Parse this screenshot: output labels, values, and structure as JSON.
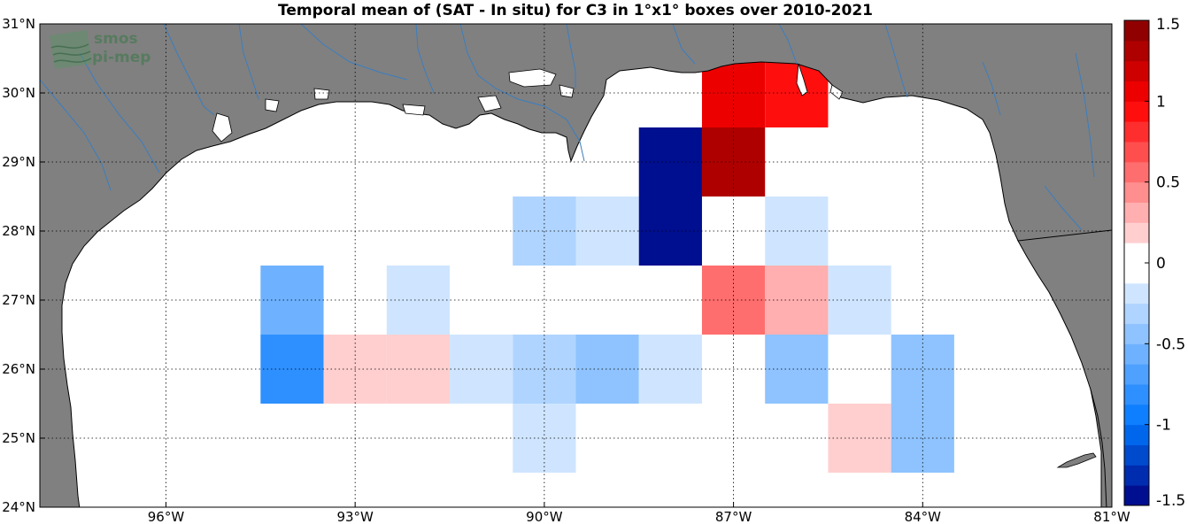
{
  "title": "Temporal mean of (SAT - In situ) for C3 in 1°x1° boxes over 2010-2021",
  "logo": {
    "line1": "smos",
    "line2": "pi-mep"
  },
  "colors": {
    "land": "#808080",
    "ocean": "#ffffff",
    "river": "#3a7ec0",
    "coast": "#000000",
    "grid": "#000000"
  },
  "chart_data": {
    "type": "heatmap",
    "xlim": [
      -98,
      -81
    ],
    "ylim": [
      24,
      31
    ],
    "x_ticks": [
      {
        "value": -96,
        "label": "96°W"
      },
      {
        "value": -93,
        "label": "93°W"
      },
      {
        "value": -90,
        "label": "90°W"
      },
      {
        "value": -87,
        "label": "87°W"
      },
      {
        "value": -84,
        "label": "84°W"
      },
      {
        "value": -81,
        "label": "81°W"
      }
    ],
    "y_ticks": [
      {
        "value": 24,
        "label": "24°N"
      },
      {
        "value": 25,
        "label": "25°N"
      },
      {
        "value": 26,
        "label": "26°N"
      },
      {
        "value": 27,
        "label": "27°N"
      },
      {
        "value": 28,
        "label": "28°N"
      },
      {
        "value": 29,
        "label": "29°N"
      },
      {
        "value": 30,
        "label": "30°N"
      },
      {
        "value": 31,
        "label": "31°N"
      }
    ],
    "grid": true,
    "clim": [
      -1.5,
      1.5
    ],
    "colorbar": {
      "ticks": [
        {
          "value": 1.5,
          "label": "1.5"
        },
        {
          "value": 1,
          "label": "1"
        },
        {
          "value": 0.5,
          "label": "0.5"
        },
        {
          "value": 0,
          "label": "0"
        },
        {
          "value": -0.5,
          "label": "-0.5"
        },
        {
          "value": -1,
          "label": "-1"
        },
        {
          "value": -1.5,
          "label": "-1.5"
        }
      ]
    },
    "cells": [
      {
        "lon": -87,
        "lat": 30,
        "value": 1.0
      },
      {
        "lon": -86,
        "lat": 30,
        "value": 0.9
      },
      {
        "lon": -88,
        "lat": 29,
        "value": -1.5
      },
      {
        "lon": -87,
        "lat": 29,
        "value": 1.3
      },
      {
        "lon": -90,
        "lat": 28,
        "value": -0.35
      },
      {
        "lon": -89,
        "lat": 28,
        "value": -0.25
      },
      {
        "lon": -88,
        "lat": 28,
        "value": -1.5
      },
      {
        "lon": -86,
        "lat": 28,
        "value": -0.25
      },
      {
        "lon": -94,
        "lat": 27,
        "value": -0.6
      },
      {
        "lon": -92,
        "lat": 27,
        "value": -0.25
      },
      {
        "lon": -87,
        "lat": 27,
        "value": 0.55
      },
      {
        "lon": -86,
        "lat": 27,
        "value": 0.3
      },
      {
        "lon": -85,
        "lat": 27,
        "value": -0.15
      },
      {
        "lon": -94,
        "lat": 26,
        "value": -0.85
      },
      {
        "lon": -93,
        "lat": 26,
        "value": 0.15
      },
      {
        "lon": -92,
        "lat": 26,
        "value": 0.15
      },
      {
        "lon": -91,
        "lat": 26,
        "value": -0.15
      },
      {
        "lon": -90,
        "lat": 26,
        "value": -0.35
      },
      {
        "lon": -89,
        "lat": 26,
        "value": -0.45
      },
      {
        "lon": -88,
        "lat": 26,
        "value": -0.25
      },
      {
        "lon": -86,
        "lat": 26,
        "value": -0.45
      },
      {
        "lon": -84,
        "lat": 26,
        "value": -0.45
      },
      {
        "lon": -90,
        "lat": 25,
        "value": -0.25
      },
      {
        "lon": -85,
        "lat": 25,
        "value": 0.15
      },
      {
        "lon": -84,
        "lat": 25,
        "value": -0.45
      }
    ]
  }
}
